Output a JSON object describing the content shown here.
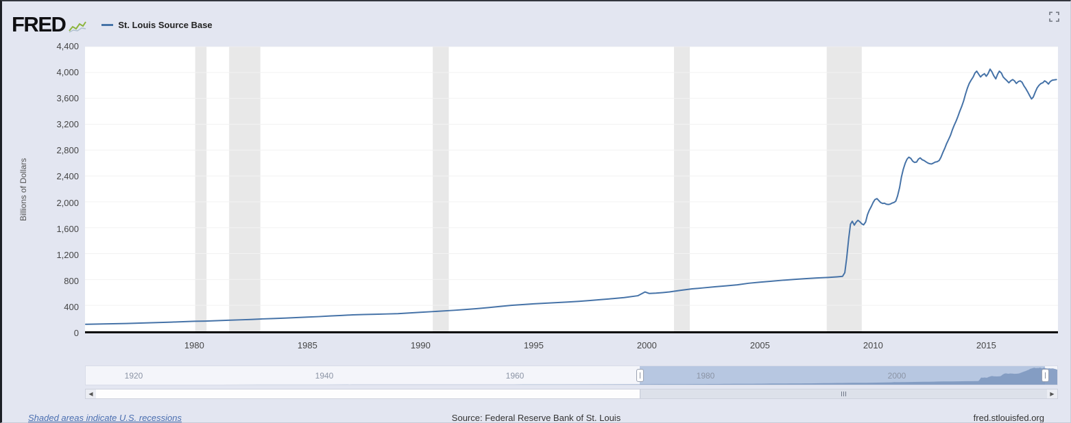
{
  "header": {
    "logo_text": "FRED",
    "legend": {
      "label": "St. Louis Source Base",
      "line_color": "#4572a7"
    }
  },
  "icons": {
    "fullscreen": "expand-corners",
    "logo_sparkline": "line-chart",
    "scroll_left": "◀",
    "scroll_right": "▶",
    "scroll_grip": "vertical-bars"
  },
  "chart_data": {
    "type": "line",
    "title": "St. Louis Source Base",
    "ylabel": "Billions of Dollars",
    "xlabel": "",
    "grid": true,
    "legend_position": "top-left",
    "x_range": [
      1975.17,
      2018.17
    ],
    "y_range": [
      0,
      4400
    ],
    "y_ticks": [
      0,
      400,
      800,
      1200,
      1600,
      2000,
      2400,
      2800,
      3200,
      3600,
      4000,
      4400
    ],
    "x_ticks": [
      1980,
      1985,
      1990,
      1995,
      2000,
      2005,
      2010,
      2015
    ],
    "recession_color": "#e8e8e8",
    "recessions": [
      [
        1980.04,
        1980.54
      ],
      [
        1981.54,
        1982.92
      ],
      [
        1990.54,
        1991.25
      ],
      [
        2001.2,
        2001.9
      ],
      [
        2007.95,
        2009.5
      ]
    ],
    "series": [
      {
        "name": "St. Louis Source Base",
        "color": "#4572a7",
        "points": [
          [
            1975.2,
            108
          ],
          [
            1976,
            113
          ],
          [
            1977,
            121
          ],
          [
            1978,
            131
          ],
          [
            1979,
            142
          ],
          [
            1980,
            154
          ],
          [
            1980.5,
            158
          ],
          [
            1981,
            164
          ],
          [
            1981.5,
            170
          ],
          [
            1982,
            176
          ],
          [
            1982.5,
            183
          ],
          [
            1983,
            191
          ],
          [
            1983.5,
            197
          ],
          [
            1984,
            204
          ],
          [
            1984.5,
            211
          ],
          [
            1985,
            219
          ],
          [
            1985.5,
            227
          ],
          [
            1986,
            236
          ],
          [
            1986.5,
            245
          ],
          [
            1987,
            254
          ],
          [
            1987.5,
            259
          ],
          [
            1988,
            264
          ],
          [
            1988.5,
            268
          ],
          [
            1989,
            272
          ],
          [
            1989.5,
            282
          ],
          [
            1990,
            293
          ],
          [
            1990.5,
            303
          ],
          [
            1991,
            314
          ],
          [
            1991.5,
            325
          ],
          [
            1992,
            337
          ],
          [
            1992.5,
            351
          ],
          [
            1993,
            366
          ],
          [
            1993.5,
            383
          ],
          [
            1994,
            400
          ],
          [
            1994.5,
            413
          ],
          [
            1995,
            424
          ],
          [
            1995.5,
            434
          ],
          [
            1996,
            443
          ],
          [
            1996.5,
            453
          ],
          [
            1997,
            463
          ],
          [
            1997.5,
            476
          ],
          [
            1998,
            490
          ],
          [
            1998.5,
            505
          ],
          [
            1999,
            521
          ],
          [
            1999.6,
            549
          ],
          [
            1999.92,
            608
          ],
          [
            2000.1,
            585
          ],
          [
            2000.4,
            589
          ],
          [
            2000.7,
            598
          ],
          [
            2001,
            608
          ],
          [
            2001.5,
            633
          ],
          [
            2002,
            655
          ],
          [
            2002.5,
            671
          ],
          [
            2003,
            688
          ],
          [
            2003.5,
            703
          ],
          [
            2004,
            718
          ],
          [
            2004.5,
            742
          ],
          [
            2005,
            759
          ],
          [
            2005.5,
            773
          ],
          [
            2006,
            789
          ],
          [
            2006.5,
            801
          ],
          [
            2007,
            813
          ],
          [
            2007.5,
            823
          ],
          [
            2008,
            832
          ],
          [
            2008.4,
            841
          ],
          [
            2008.65,
            849
          ],
          [
            2008.75,
            905
          ],
          [
            2008.83,
            1128
          ],
          [
            2008.92,
            1435
          ],
          [
            2009,
            1655
          ],
          [
            2009.08,
            1700
          ],
          [
            2009.17,
            1640
          ],
          [
            2009.25,
            1685
          ],
          [
            2009.33,
            1715
          ],
          [
            2009.42,
            1690
          ],
          [
            2009.5,
            1660
          ],
          [
            2009.58,
            1645
          ],
          [
            2009.67,
            1690
          ],
          [
            2009.75,
            1800
          ],
          [
            2009.83,
            1870
          ],
          [
            2009.92,
            1930
          ],
          [
            2010,
            1990
          ],
          [
            2010.08,
            2035
          ],
          [
            2010.17,
            2050
          ],
          [
            2010.25,
            2020
          ],
          [
            2010.33,
            1990
          ],
          [
            2010.42,
            1975
          ],
          [
            2010.5,
            1980
          ],
          [
            2010.58,
            1965
          ],
          [
            2010.67,
            1960
          ],
          [
            2010.75,
            1965
          ],
          [
            2010.83,
            1980
          ],
          [
            2010.92,
            1990
          ],
          [
            2011,
            2010
          ],
          [
            2011.08,
            2090
          ],
          [
            2011.17,
            2220
          ],
          [
            2011.25,
            2380
          ],
          [
            2011.33,
            2500
          ],
          [
            2011.42,
            2600
          ],
          [
            2011.5,
            2660
          ],
          [
            2011.58,
            2690
          ],
          [
            2011.67,
            2670
          ],
          [
            2011.75,
            2630
          ],
          [
            2011.83,
            2610
          ],
          [
            2011.92,
            2615
          ],
          [
            2012,
            2660
          ],
          [
            2012.08,
            2680
          ],
          [
            2012.17,
            2650
          ],
          [
            2012.25,
            2640
          ],
          [
            2012.33,
            2620
          ],
          [
            2012.42,
            2600
          ],
          [
            2012.5,
            2590
          ],
          [
            2012.58,
            2585
          ],
          [
            2012.67,
            2600
          ],
          [
            2012.75,
            2615
          ],
          [
            2012.83,
            2620
          ],
          [
            2012.92,
            2640
          ],
          [
            2013,
            2690
          ],
          [
            2013.08,
            2760
          ],
          [
            2013.17,
            2830
          ],
          [
            2013.25,
            2900
          ],
          [
            2013.33,
            2960
          ],
          [
            2013.42,
            3030
          ],
          [
            2013.5,
            3110
          ],
          [
            2013.58,
            3180
          ],
          [
            2013.67,
            3250
          ],
          [
            2013.75,
            3320
          ],
          [
            2013.83,
            3400
          ],
          [
            2013.92,
            3480
          ],
          [
            2014,
            3560
          ],
          [
            2014.08,
            3660
          ],
          [
            2014.17,
            3760
          ],
          [
            2014.25,
            3830
          ],
          [
            2014.33,
            3880
          ],
          [
            2014.42,
            3930
          ],
          [
            2014.5,
            3990
          ],
          [
            2014.58,
            4020
          ],
          [
            2014.67,
            3970
          ],
          [
            2014.75,
            3930
          ],
          [
            2014.83,
            3960
          ],
          [
            2014.92,
            3980
          ],
          [
            2015,
            3940
          ],
          [
            2015.08,
            3980
          ],
          [
            2015.17,
            4050
          ],
          [
            2015.25,
            4010
          ],
          [
            2015.33,
            3950
          ],
          [
            2015.42,
            3900
          ],
          [
            2015.5,
            3970
          ],
          [
            2015.58,
            4020
          ],
          [
            2015.67,
            3990
          ],
          [
            2015.75,
            3930
          ],
          [
            2015.83,
            3900
          ],
          [
            2015.92,
            3870
          ],
          [
            2016,
            3840
          ],
          [
            2016.08,
            3870
          ],
          [
            2016.17,
            3890
          ],
          [
            2016.25,
            3870
          ],
          [
            2016.33,
            3830
          ],
          [
            2016.42,
            3860
          ],
          [
            2016.5,
            3870
          ],
          [
            2016.58,
            3850
          ],
          [
            2016.67,
            3790
          ],
          [
            2016.75,
            3750
          ],
          [
            2016.83,
            3700
          ],
          [
            2016.92,
            3640
          ],
          [
            2017,
            3590
          ],
          [
            2017.08,
            3620
          ],
          [
            2017.17,
            3700
          ],
          [
            2017.25,
            3760
          ],
          [
            2017.33,
            3800
          ],
          [
            2017.42,
            3830
          ],
          [
            2017.5,
            3840
          ],
          [
            2017.58,
            3870
          ],
          [
            2017.67,
            3850
          ],
          [
            2017.75,
            3820
          ],
          [
            2017.83,
            3860
          ],
          [
            2017.92,
            3880
          ],
          [
            2018.1,
            3890
          ]
        ]
      }
    ]
  },
  "slider": {
    "x_range": [
      1915,
      2017
    ],
    "selection": [
      1973.1,
      2015.6
    ],
    "tick_years": [
      1920,
      1940,
      1960,
      1980,
      2000
    ],
    "tick_labels": [
      "1920",
      "1940",
      "1960",
      "1980",
      "2000"
    ],
    "colors": {
      "selection_bg": "#b7c7e1",
      "area_fill": "#7e98c0",
      "track_bg": "#f4f5fa"
    },
    "mini_points_pre": [
      [
        1915,
        5
      ],
      [
        1918,
        8
      ],
      [
        1920,
        7
      ],
      [
        1925,
        7
      ],
      [
        1929,
        7
      ],
      [
        1933,
        10
      ],
      [
        1936,
        14
      ],
      [
        1940,
        23
      ],
      [
        1943,
        35
      ],
      [
        1945,
        44
      ],
      [
        1948,
        45
      ],
      [
        1950,
        46
      ],
      [
        1955,
        48
      ],
      [
        1960,
        50
      ],
      [
        1965,
        61
      ],
      [
        1970,
        79
      ],
      [
        1974,
        102
      ]
    ]
  },
  "footer": {
    "notes": "Shaded areas indicate U.S. recessions",
    "source": "Source: Federal Reserve Bank of St. Louis",
    "link": "fred.stlouisfed.org"
  }
}
